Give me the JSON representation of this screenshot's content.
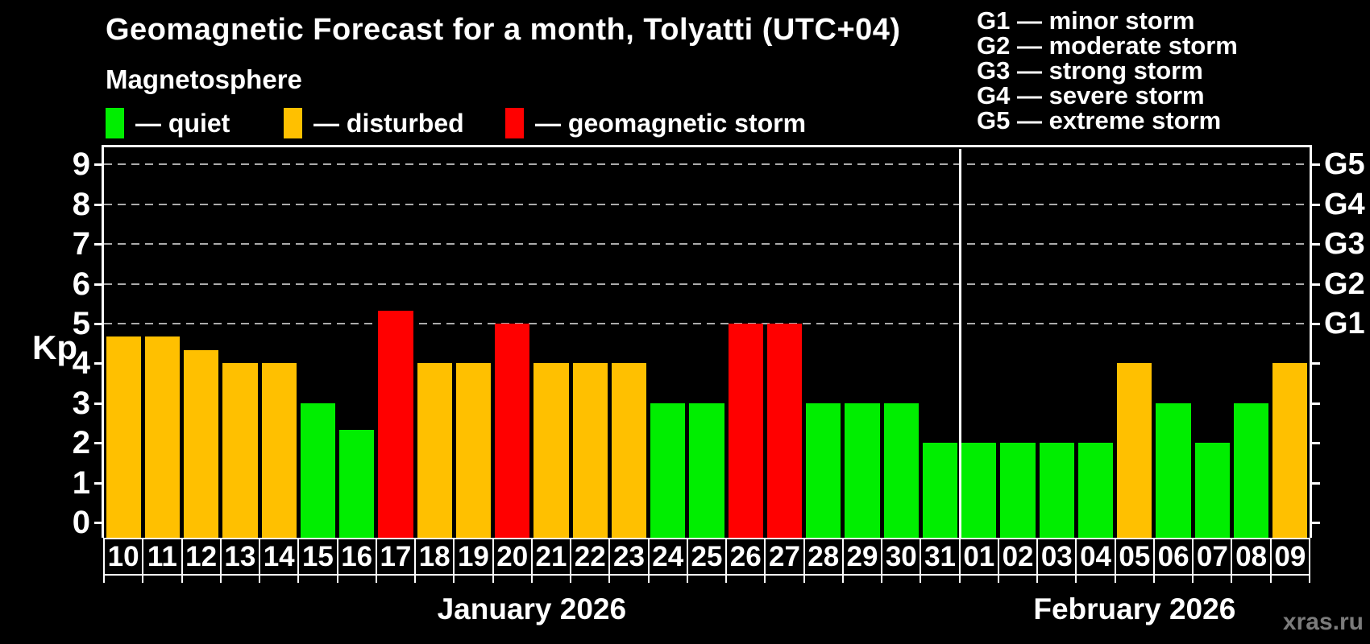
{
  "title": "Geomagnetic Forecast for a month, Tolyatti (UTC+04)",
  "subtitle": "Magnetosphere",
  "legend": {
    "items": [
      {
        "label": "— quiet",
        "status": "quiet"
      },
      {
        "label": "— disturbed",
        "status": "disturbed"
      },
      {
        "label": "— geomagnetic storm",
        "status": "storm"
      }
    ]
  },
  "g_legend": [
    "G1 — minor storm",
    "G2 — moderate storm",
    "G3 — strong storm",
    "G4 — severe storm",
    "G5 — extreme storm"
  ],
  "watermark": "xras.ru",
  "colors": {
    "background": "#000000",
    "text": "#ffffff",
    "axis": "#ffffff",
    "grid": "#ababab",
    "quiet": "#00ee00",
    "disturbed": "#ffc000",
    "storm": "#ff0000",
    "watermark": "#7b7b7b"
  },
  "axes": {
    "y_label": "Kp",
    "y_ticks": [
      "0",
      "1",
      "2",
      "3",
      "4",
      "5",
      "6",
      "7",
      "8",
      "9"
    ],
    "right_labels": [
      {
        "text": "G1",
        "kp": 5
      },
      {
        "text": "G2",
        "kp": 6
      },
      {
        "text": "G3",
        "kp": 7
      },
      {
        "text": "G4",
        "kp": 8
      },
      {
        "text": "G5",
        "kp": 9
      }
    ],
    "grid_kp": [
      5,
      6,
      7,
      8,
      9
    ]
  },
  "chart_data": {
    "type": "bar",
    "title": "Geomagnetic Forecast for a month, Tolyatti (UTC+04)",
    "xlabel": "",
    "ylabel": "Kp",
    "ylim": [
      0,
      9
    ],
    "grid": "horizontal dashed at Kp 5-9 (G1-G5 levels)",
    "legend_position": "top-left",
    "categories": [
      "10",
      "11",
      "12",
      "13",
      "14",
      "15",
      "16",
      "17",
      "18",
      "19",
      "20",
      "21",
      "22",
      "23",
      "24",
      "25",
      "26",
      "27",
      "28",
      "29",
      "30",
      "31",
      "01",
      "02",
      "03",
      "04",
      "05",
      "06",
      "07",
      "08",
      "09"
    ],
    "values": [
      4.67,
      4.67,
      4.33,
      4,
      4,
      3,
      2.33,
      5.33,
      4,
      4,
      5,
      4,
      4,
      4,
      3,
      3,
      5,
      5,
      3,
      3,
      3,
      2,
      2,
      2,
      2,
      2,
      4,
      3,
      2,
      3,
      4
    ],
    "statuses": [
      "disturbed",
      "disturbed",
      "disturbed",
      "disturbed",
      "disturbed",
      "quiet",
      "quiet",
      "storm",
      "disturbed",
      "disturbed",
      "storm",
      "disturbed",
      "disturbed",
      "disturbed",
      "quiet",
      "quiet",
      "storm",
      "storm",
      "quiet",
      "quiet",
      "quiet",
      "quiet",
      "quiet",
      "quiet",
      "quiet",
      "quiet",
      "disturbed",
      "quiet",
      "quiet",
      "quiet",
      "disturbed"
    ],
    "months": [
      {
        "label": "January 2026",
        "days": 22
      },
      {
        "label": "February 2026",
        "days": 9
      }
    ]
  }
}
